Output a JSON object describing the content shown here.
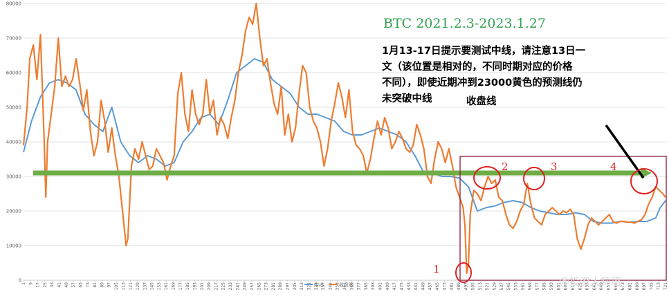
{
  "chart_data": {
    "type": "line",
    "title": "BTC   2021.2.3-2023.1.27",
    "ylim": [
      0,
      80000
    ],
    "yticks": [
      0,
      10000,
      20000,
      30000,
      40000,
      50000,
      60000,
      70000,
      80000
    ],
    "grid": true,
    "x_tick_labels": [
      "1",
      "9",
      "17",
      "25",
      "33",
      "41",
      "49",
      "57",
      "65",
      "73",
      "81",
      "89",
      "97",
      "105",
      "113",
      "121",
      "129",
      "137",
      "145",
      "153",
      "161",
      "169",
      "177",
      "185",
      "193",
      "201",
      "209",
      "217",
      "225",
      "233",
      "241",
      "249",
      "257",
      "265",
      "273",
      "281",
      "289",
      "297",
      "305",
      "313",
      "321",
      "329",
      "337",
      "345",
      "353",
      "361",
      "369",
      "377",
      "385",
      "393",
      "401",
      "409",
      "417",
      "425",
      "433",
      "441",
      "449",
      "457",
      "465",
      "473",
      "481",
      "489",
      "497",
      "505",
      "513",
      "521",
      "529",
      "537",
      "545",
      "553",
      "561",
      "569",
      "577",
      "585",
      "593",
      "601",
      "609",
      "617",
      "625",
      "633",
      "641",
      "649",
      "657",
      "665",
      "673",
      "681",
      "689",
      "697",
      "705",
      "713",
      "721"
    ],
    "series": [
      {
        "name": "中线",
        "color": "#5b9bd5",
        "points": [
          [
            1,
            37000
          ],
          [
            10,
            46000
          ],
          [
            20,
            53000
          ],
          [
            30,
            57000
          ],
          [
            40,
            58000
          ],
          [
            50,
            57000
          ],
          [
            60,
            55000
          ],
          [
            70,
            48000
          ],
          [
            80,
            45000
          ],
          [
            90,
            43000
          ],
          [
            100,
            50000
          ],
          [
            110,
            40000
          ],
          [
            120,
            36000
          ],
          [
            130,
            34000
          ],
          [
            140,
            36000
          ],
          [
            150,
            35000
          ],
          [
            160,
            33000
          ],
          [
            170,
            34000
          ],
          [
            180,
            40000
          ],
          [
            190,
            43000
          ],
          [
            200,
            47000
          ],
          [
            210,
            48000
          ],
          [
            220,
            45000
          ],
          [
            230,
            52000
          ],
          [
            240,
            60000
          ],
          [
            250,
            62000
          ],
          [
            260,
            64000
          ],
          [
            270,
            63000
          ],
          [
            280,
            58000
          ],
          [
            290,
            56000
          ],
          [
            300,
            54000
          ],
          [
            310,
            50000
          ],
          [
            320,
            48000
          ],
          [
            330,
            48000
          ],
          [
            340,
            47000
          ],
          [
            350,
            46000
          ],
          [
            360,
            43000
          ],
          [
            370,
            42000
          ],
          [
            380,
            42000
          ],
          [
            390,
            43000
          ],
          [
            400,
            44000
          ],
          [
            410,
            43000
          ],
          [
            420,
            42000
          ],
          [
            430,
            40000
          ],
          [
            440,
            36000
          ],
          [
            450,
            31000
          ],
          [
            460,
            31000
          ],
          [
            470,
            30000
          ],
          [
            480,
            30000
          ],
          [
            490,
            29500
          ],
          [
            500,
            27000
          ],
          [
            510,
            20000
          ],
          [
            520,
            21000
          ],
          [
            530,
            21500
          ],
          [
            540,
            22500
          ],
          [
            550,
            23000
          ],
          [
            560,
            22500
          ],
          [
            570,
            21000
          ],
          [
            580,
            20000
          ],
          [
            590,
            19500
          ],
          [
            600,
            19000
          ],
          [
            610,
            19000
          ],
          [
            620,
            19500
          ],
          [
            630,
            19000
          ],
          [
            640,
            17000
          ],
          [
            650,
            16500
          ],
          [
            660,
            16500
          ],
          [
            670,
            17000
          ],
          [
            680,
            16800
          ],
          [
            690,
            17000
          ],
          [
            700,
            17000
          ],
          [
            710,
            18000
          ],
          [
            715,
            21000
          ],
          [
            721,
            23000
          ]
        ]
      },
      {
        "name": "收盘线",
        "color": "#ed7d31",
        "points": [
          [
            1,
            39000
          ],
          [
            5,
            50000
          ],
          [
            8,
            64000
          ],
          [
            12,
            68000
          ],
          [
            16,
            58000
          ],
          [
            20,
            71000
          ],
          [
            24,
            42000
          ],
          [
            26,
            24000
          ],
          [
            28,
            40000
          ],
          [
            32,
            48000
          ],
          [
            36,
            56000
          ],
          [
            40,
            70000
          ],
          [
            44,
            56000
          ],
          [
            48,
            59000
          ],
          [
            52,
            56000
          ],
          [
            56,
            58000
          ],
          [
            60,
            64000
          ],
          [
            64,
            57000
          ],
          [
            68,
            49000
          ],
          [
            72,
            55000
          ],
          [
            76,
            43000
          ],
          [
            80,
            36000
          ],
          [
            84,
            40000
          ],
          [
            88,
            52000
          ],
          [
            92,
            46000
          ],
          [
            96,
            37000
          ],
          [
            100,
            44000
          ],
          [
            104,
            36000
          ],
          [
            108,
            30000
          ],
          [
            112,
            20000
          ],
          [
            116,
            10000
          ],
          [
            118,
            12000
          ],
          [
            122,
            33000
          ],
          [
            126,
            38000
          ],
          [
            130,
            35000
          ],
          [
            134,
            40000
          ],
          [
            138,
            36000
          ],
          [
            142,
            32000
          ],
          [
            146,
            33000
          ],
          [
            150,
            38000
          ],
          [
            154,
            36000
          ],
          [
            158,
            34000
          ],
          [
            162,
            29000
          ],
          [
            166,
            33000
          ],
          [
            170,
            36000
          ],
          [
            174,
            54000
          ],
          [
            178,
            60000
          ],
          [
            182,
            48000
          ],
          [
            186,
            43000
          ],
          [
            190,
            55000
          ],
          [
            194,
            48000
          ],
          [
            198,
            45000
          ],
          [
            202,
            48000
          ],
          [
            206,
            58000
          ],
          [
            210,
            48000
          ],
          [
            214,
            52000
          ],
          [
            218,
            42000
          ],
          [
            222,
            47000
          ],
          [
            226,
            45000
          ],
          [
            230,
            41000
          ],
          [
            234,
            47000
          ],
          [
            238,
            52000
          ],
          [
            242,
            60000
          ],
          [
            246,
            65000
          ],
          [
            250,
            72000
          ],
          [
            254,
            76000
          ],
          [
            258,
            74000
          ],
          [
            262,
            80000
          ],
          [
            266,
            70000
          ],
          [
            270,
            62000
          ],
          [
            274,
            64000
          ],
          [
            278,
            57000
          ],
          [
            282,
            51000
          ],
          [
            286,
            48000
          ],
          [
            290,
            56000
          ],
          [
            294,
            42000
          ],
          [
            298,
            48000
          ],
          [
            302,
            40000
          ],
          [
            306,
            44000
          ],
          [
            310,
            54000
          ],
          [
            314,
            62000
          ],
          [
            318,
            60000
          ],
          [
            322,
            50000
          ],
          [
            326,
            46000
          ],
          [
            330,
            44000
          ],
          [
            334,
            40000
          ],
          [
            338,
            33000
          ],
          [
            342,
            38000
          ],
          [
            346,
            46000
          ],
          [
            350,
            51000
          ],
          [
            354,
            57000
          ],
          [
            358,
            53000
          ],
          [
            362,
            47000
          ],
          [
            366,
            55000
          ],
          [
            370,
            43000
          ],
          [
            374,
            39000
          ],
          [
            378,
            38000
          ],
          [
            382,
            36000
          ],
          [
            386,
            31000
          ],
          [
            390,
            35000
          ],
          [
            394,
            41000
          ],
          [
            398,
            46000
          ],
          [
            402,
            42000
          ],
          [
            406,
            47000
          ],
          [
            410,
            44000
          ],
          [
            414,
            38000
          ],
          [
            418,
            40000
          ],
          [
            422,
            43000
          ],
          [
            426,
            41000
          ],
          [
            430,
            38000
          ],
          [
            434,
            37000
          ],
          [
            438,
            39000
          ],
          [
            442,
            45000
          ],
          [
            446,
            42000
          ],
          [
            450,
            38000
          ],
          [
            454,
            30000
          ],
          [
            458,
            28000
          ],
          [
            462,
            35000
          ],
          [
            466,
            40000
          ],
          [
            470,
            38000
          ],
          [
            474,
            34000
          ],
          [
            478,
            38000
          ],
          [
            482,
            33000
          ],
          [
            486,
            27000
          ],
          [
            490,
            24000
          ],
          [
            494,
            21000
          ],
          [
            496,
            16000
          ],
          [
            498,
            2000
          ],
          [
            500,
            5000
          ],
          [
            502,
            19000
          ],
          [
            506,
            26000
          ],
          [
            510,
            25000
          ],
          [
            514,
            23000
          ],
          [
            518,
            27000
          ],
          [
            522,
            30000
          ],
          [
            526,
            28000
          ],
          [
            530,
            29000
          ],
          [
            534,
            24000
          ],
          [
            538,
            23000
          ],
          [
            542,
            19000
          ],
          [
            546,
            16000
          ],
          [
            550,
            15000
          ],
          [
            554,
            17000
          ],
          [
            558,
            20000
          ],
          [
            562,
            22000
          ],
          [
            566,
            28000
          ],
          [
            570,
            22000
          ],
          [
            574,
            18000
          ],
          [
            578,
            17000
          ],
          [
            582,
            16000
          ],
          [
            586,
            19000
          ],
          [
            590,
            20000
          ],
          [
            594,
            21000
          ],
          [
            598,
            20000
          ],
          [
            602,
            19000
          ],
          [
            606,
            20000
          ],
          [
            610,
            19500
          ],
          [
            614,
            20500
          ],
          [
            618,
            19000
          ],
          [
            622,
            12000
          ],
          [
            626,
            9000
          ],
          [
            630,
            12000
          ],
          [
            634,
            16000
          ],
          [
            638,
            18000
          ],
          [
            642,
            17000
          ],
          [
            646,
            16000
          ],
          [
            650,
            17000
          ],
          [
            654,
            18000
          ],
          [
            658,
            19000
          ],
          [
            662,
            17000
          ],
          [
            666,
            16500
          ],
          [
            670,
            17000
          ],
          [
            674,
            17000
          ],
          [
            678,
            16800
          ],
          [
            682,
            16800
          ],
          [
            686,
            16500
          ],
          [
            690,
            17000
          ],
          [
            694,
            17500
          ],
          [
            698,
            19000
          ],
          [
            702,
            22000
          ],
          [
            706,
            24000
          ],
          [
            710,
            27000
          ],
          [
            714,
            26000
          ],
          [
            718,
            25000
          ],
          [
            721,
            24000
          ]
        ]
      }
    ],
    "reference_line": {
      "value": 31000,
      "color": "#70ad47"
    }
  },
  "annotations": {
    "note": [
      "1月13-17日提示要测试中线，请注意13日一",
      "文（该位置是相对的，不同时期对应的价格",
      "不同），即使近期冲到23000黄色的预测线仍",
      "未突破中线"
    ],
    "close_label": "收盘线",
    "markers": [
      "1",
      "2",
      "3",
      "4"
    ]
  },
  "legend": [
    "中线",
    "收盘线"
  ],
  "watermark": "@投资大师塔",
  "colors": {
    "marker": "#e02020",
    "region": "#8b1a3a",
    "arrow": "#000000"
  }
}
